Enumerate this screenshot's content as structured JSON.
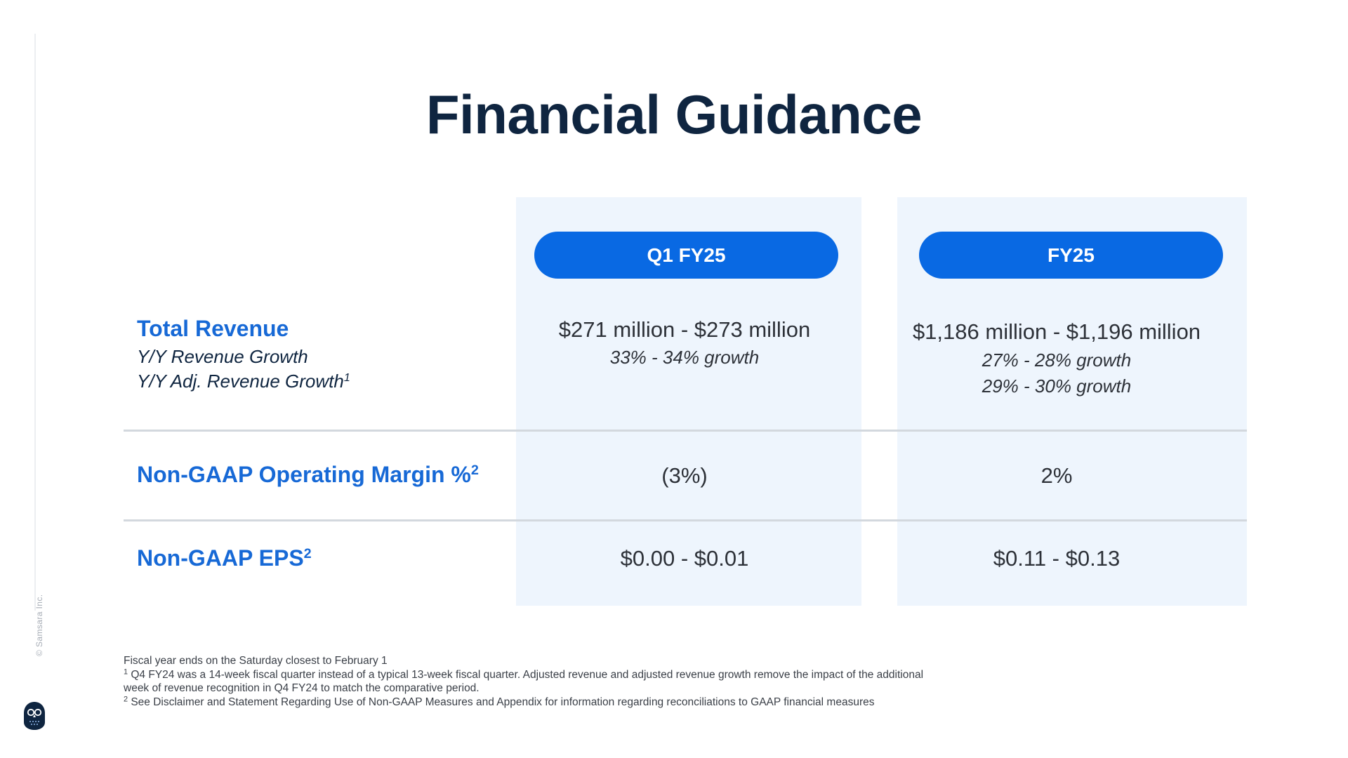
{
  "title": "Financial Guidance",
  "columns": {
    "q1": "Q1 FY25",
    "fy": "FY25"
  },
  "rows": {
    "revenue": {
      "label": "Total Revenue",
      "sub1": "Y/Y Revenue Growth",
      "sub2": "Y/Y Adj. Revenue Growth",
      "sub2_sup": "1",
      "q1_main": "$271 million - $273 million",
      "q1_growth": "33% - 34% growth",
      "fy_main": "$1,186 million - $1,196 million",
      "fy_growth": "27% - 28% growth",
      "fy_adj_growth": "29% - 30% growth"
    },
    "margin": {
      "label": "Non-GAAP Operating Margin %",
      "sup": "2",
      "q1": "(3%)",
      "fy": "2%"
    },
    "eps": {
      "label": "Non-GAAP EPS",
      "sup": "2",
      "q1": "$0.00 - $0.01",
      "fy": "$0.11 - $0.13"
    }
  },
  "footnotes": {
    "fiscal": "Fiscal year ends on the Saturday closest to February 1",
    "n1_mark": "1",
    "n1": " Q4 FY24 was a 14-week fiscal quarter instead of a typical 13-week fiscal quarter. Adjusted revenue and adjusted revenue growth remove the impact of the additional week of revenue recognition in Q4 FY24 to match the comparative period.",
    "n2_mark": "2",
    "n2": " See Disclaimer and Statement Regarding Use of Non-GAAP Measures and Appendix for information regarding reconciliations to GAAP financial measures"
  },
  "copyright": "© Samsara Inc.",
  "icons": {
    "logo": "samsara-owl-logo-icon"
  },
  "colors": {
    "title": "#0f2540",
    "accent_blue": "#1769d6",
    "pill_blue": "#0969e3",
    "panel_bg": "#eef5fd",
    "divider": "#d3d8de"
  }
}
